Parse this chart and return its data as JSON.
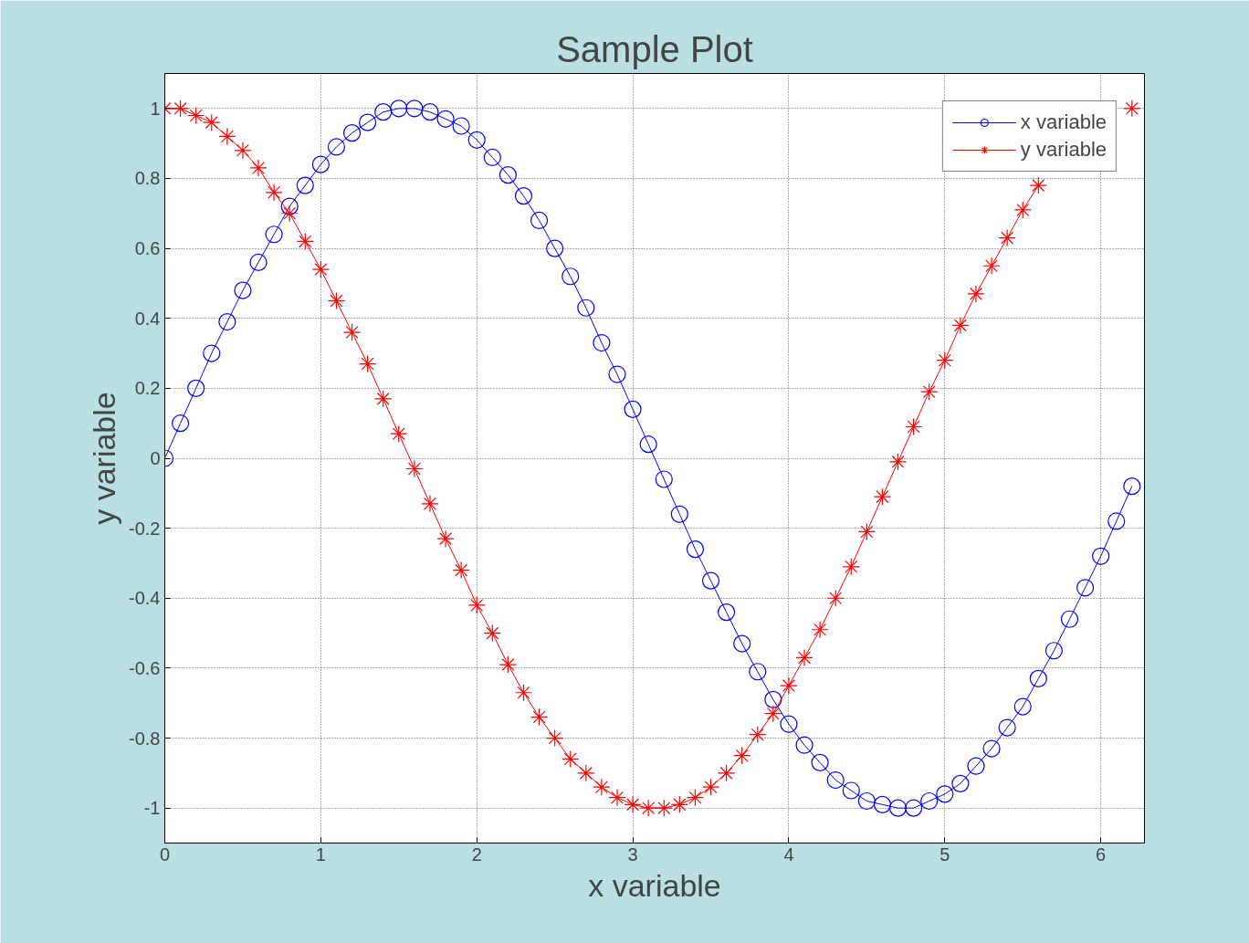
{
  "chart_data": {
    "type": "line",
    "title": "Sample Plot",
    "xlabel": "x variable",
    "ylabel": "y variable",
    "x": [
      0,
      0.1,
      0.2,
      0.3,
      0.4,
      0.5,
      0.6,
      0.7,
      0.8,
      0.9,
      1.0,
      1.1,
      1.2,
      1.3,
      1.4,
      1.5,
      1.6,
      1.7,
      1.8,
      1.9,
      2.0,
      2.1,
      2.2,
      2.3,
      2.4,
      2.5,
      2.6,
      2.7,
      2.8,
      2.9,
      3.0,
      3.1,
      3.2,
      3.3,
      3.4,
      3.5,
      3.6,
      3.7,
      3.8,
      3.9,
      4.0,
      4.1,
      4.2,
      4.3,
      4.4,
      4.5,
      4.6,
      4.7,
      4.8,
      4.9,
      5.0,
      5.1,
      5.2,
      5.3,
      5.4,
      5.5,
      5.6,
      5.7,
      5.8,
      5.9,
      6.0,
      6.1,
      6.2
    ],
    "series": [
      {
        "name": "x variable",
        "color": "#0000ff",
        "marker": "circle",
        "values": [
          0.0,
          0.1,
          0.2,
          0.3,
          0.39,
          0.48,
          0.56,
          0.64,
          0.72,
          0.78,
          0.84,
          0.89,
          0.93,
          0.96,
          0.99,
          1.0,
          1.0,
          0.99,
          0.97,
          0.95,
          0.91,
          0.86,
          0.81,
          0.75,
          0.68,
          0.6,
          0.52,
          0.43,
          0.33,
          0.24,
          0.14,
          0.04,
          -0.06,
          -0.16,
          -0.26,
          -0.35,
          -0.44,
          -0.53,
          -0.61,
          -0.69,
          -0.76,
          -0.82,
          -0.87,
          -0.92,
          -0.95,
          -0.98,
          -0.99,
          -1.0,
          -1.0,
          -0.98,
          -0.96,
          -0.93,
          -0.88,
          -0.83,
          -0.77,
          -0.71,
          -0.63,
          -0.55,
          -0.46,
          -0.37,
          -0.28,
          -0.18,
          -0.08
        ]
      },
      {
        "name": "y variable",
        "color": "#ff0000",
        "marker": "cross",
        "values": [
          1.0,
          1.0,
          0.98,
          0.96,
          0.92,
          0.88,
          0.83,
          0.76,
          0.7,
          0.62,
          0.54,
          0.45,
          0.36,
          0.27,
          0.17,
          0.07,
          -0.03,
          -0.13,
          -0.23,
          -0.32,
          -0.42,
          -0.5,
          -0.59,
          -0.67,
          -0.74,
          -0.8,
          -0.86,
          -0.9,
          -0.94,
          -0.97,
          -0.99,
          -1.0,
          -1.0,
          -0.99,
          -0.97,
          -0.94,
          -0.9,
          -0.85,
          -0.79,
          -0.73,
          -0.65,
          -0.57,
          -0.49,
          -0.4,
          -0.31,
          -0.21,
          -0.11,
          -0.01,
          0.09,
          0.19,
          0.28,
          0.38,
          0.47,
          0.55,
          0.63,
          0.71,
          0.78,
          null,
          null,
          null,
          null,
          null,
          1.0
        ]
      }
    ],
    "xlim": [
      0,
      6.28
    ],
    "ylim": [
      -1.1,
      1.1
    ],
    "xticks": [
      0,
      1,
      2,
      3,
      4,
      5,
      6
    ],
    "yticks": [
      -1,
      -0.8,
      -0.6,
      -0.4,
      -0.2,
      0,
      0.2,
      0.4,
      0.6,
      0.8,
      1
    ],
    "grid": true,
    "legend": "top right"
  }
}
